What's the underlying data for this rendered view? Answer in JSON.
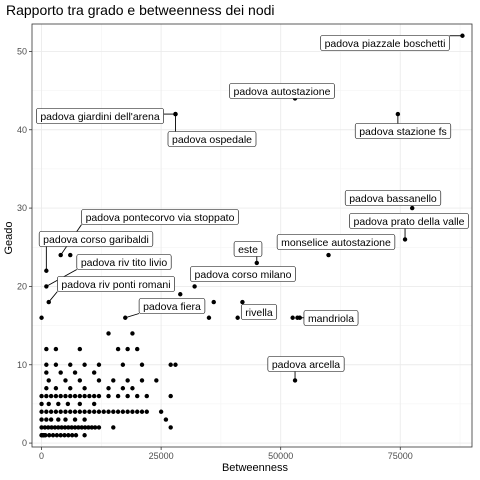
{
  "chart_data": {
    "type": "scatter",
    "title": "Rapporto tra grado e betweenness dei nodi",
    "xlabel": "Betweenness",
    "ylabel": "Geado",
    "xlim": [
      -2000,
      90000
    ],
    "ylim": [
      -0.5,
      53.5
    ],
    "xticks": [
      0,
      25000,
      50000,
      75000
    ],
    "xtick_labels": [
      "0",
      "25000",
      "50000",
      "75000"
    ],
    "yticks": [
      0,
      10,
      20,
      30,
      40,
      50
    ],
    "ytick_labels": [
      "0",
      "10",
      "20",
      "30",
      "40",
      "50"
    ],
    "grid": true,
    "labeled_points": [
      {
        "label": "padova piazzale boschetti",
        "x": 88000,
        "y": 52
      },
      {
        "label": "padova autostazione",
        "x": 53000,
        "y": 44
      },
      {
        "label": "padova stazione fs",
        "x": 74500,
        "y": 42
      },
      {
        "label": "padova giardini dell'arena",
        "x": 28000,
        "y": 42
      },
      {
        "label": "padova ospedale",
        "x": 28000,
        "y": 42
      },
      {
        "label": "padova bassanello",
        "x": 77500,
        "y": 30
      },
      {
        "label": "padova prato della valle",
        "x": 76000,
        "y": 26
      },
      {
        "label": "padova pontecorvo via stoppato",
        "x": 4000,
        "y": 24
      },
      {
        "label": "padova corso garibaldi",
        "x": 1000,
        "y": 22
      },
      {
        "label": "monselice autostazione",
        "x": 60000,
        "y": 24
      },
      {
        "label": "este",
        "x": 45000,
        "y": 23
      },
      {
        "label": "padova riv tito livio",
        "x": 1000,
        "y": 20
      },
      {
        "label": "padova corso milano",
        "x": 32000,
        "y": 20
      },
      {
        "label": "padova riv ponti romani",
        "x": 1500,
        "y": 18
      },
      {
        "label": "padova fiera",
        "x": 17500,
        "y": 16
      },
      {
        "label": "rivella",
        "x": 42000,
        "y": 18
      },
      {
        "label": "mandriola",
        "x": 53500,
        "y": 16
      },
      {
        "label": "padova arcella",
        "x": 53000,
        "y": 8
      }
    ],
    "other_points": [
      [
        0,
        1
      ],
      [
        500,
        1
      ],
      [
        300,
        1
      ],
      [
        0,
        16
      ],
      [
        6000,
        24
      ],
      [
        29000,
        19
      ],
      [
        35000,
        16
      ],
      [
        36000,
        18
      ],
      [
        41000,
        16
      ],
      [
        52500,
        16
      ],
      [
        54000,
        16
      ],
      [
        1000,
        12
      ],
      [
        3000,
        12
      ],
      [
        8000,
        12
      ],
      [
        14000,
        14
      ],
      [
        16000,
        12
      ],
      [
        18000,
        12
      ],
      [
        19000,
        14
      ],
      [
        20000,
        12
      ],
      [
        1000,
        10
      ],
      [
        3000,
        10
      ],
      [
        6000,
        10
      ],
      [
        9000,
        10
      ],
      [
        12000,
        10
      ],
      [
        17000,
        10
      ],
      [
        21000,
        10
      ],
      [
        27000,
        10
      ],
      [
        28000,
        10
      ],
      [
        1000,
        9
      ],
      [
        4000,
        9
      ],
      [
        7000,
        9
      ],
      [
        11000,
        9
      ],
      [
        1500,
        8
      ],
      [
        5000,
        8
      ],
      [
        8000,
        8
      ],
      [
        12000,
        8
      ],
      [
        15000,
        8
      ],
      [
        18000,
        8
      ],
      [
        21000,
        8
      ],
      [
        24000,
        8
      ],
      [
        1000,
        7
      ],
      [
        3000,
        7
      ],
      [
        6000,
        7
      ],
      [
        9000,
        7
      ],
      [
        14000,
        7
      ],
      [
        17000,
        7
      ],
      [
        19000,
        7
      ],
      [
        0,
        6
      ],
      [
        1000,
        6
      ],
      [
        2000,
        6
      ],
      [
        3000,
        6
      ],
      [
        4000,
        6
      ],
      [
        5000,
        6
      ],
      [
        6000,
        6
      ],
      [
        7000,
        6
      ],
      [
        8000,
        6
      ],
      [
        9000,
        6
      ],
      [
        10000,
        6
      ],
      [
        11000,
        6
      ],
      [
        12000,
        6
      ],
      [
        14000,
        6
      ],
      [
        16000,
        6
      ],
      [
        18000,
        6
      ],
      [
        20000,
        6
      ],
      [
        22000,
        6
      ],
      [
        27000,
        6
      ],
      [
        0,
        5
      ],
      [
        1500,
        5
      ],
      [
        3500,
        5
      ],
      [
        5500,
        5
      ],
      [
        8000,
        5
      ],
      [
        11000,
        5
      ],
      [
        0,
        4
      ],
      [
        1000,
        4
      ],
      [
        2000,
        4
      ],
      [
        3000,
        4
      ],
      [
        4000,
        4
      ],
      [
        5000,
        4
      ],
      [
        6000,
        4
      ],
      [
        7000,
        4
      ],
      [
        8000,
        4
      ],
      [
        9000,
        4
      ],
      [
        10000,
        4
      ],
      [
        11000,
        4
      ],
      [
        12000,
        4
      ],
      [
        13000,
        4
      ],
      [
        14000,
        4
      ],
      [
        15000,
        4
      ],
      [
        16000,
        4
      ],
      [
        17000,
        4
      ],
      [
        18000,
        4
      ],
      [
        19000,
        4
      ],
      [
        20000,
        4
      ],
      [
        21000,
        4
      ],
      [
        22000,
        4
      ],
      [
        25000,
        4
      ],
      [
        0,
        3
      ],
      [
        1000,
        3
      ],
      [
        2000,
        3
      ],
      [
        3500,
        3
      ],
      [
        5000,
        3
      ],
      [
        7000,
        3
      ],
      [
        9000,
        3
      ],
      [
        26000,
        3
      ],
      [
        0,
        2
      ],
      [
        700,
        2
      ],
      [
        1400,
        2
      ],
      [
        2100,
        2
      ],
      [
        2800,
        2
      ],
      [
        3500,
        2
      ],
      [
        4200,
        2
      ],
      [
        4900,
        2
      ],
      [
        5600,
        2
      ],
      [
        6300,
        2
      ],
      [
        7000,
        2
      ],
      [
        7700,
        2
      ],
      [
        8400,
        2
      ],
      [
        9100,
        2
      ],
      [
        9800,
        2
      ],
      [
        10500,
        2
      ],
      [
        11200,
        2
      ],
      [
        12000,
        2
      ],
      [
        15000,
        2
      ],
      [
        27000,
        2
      ],
      [
        0,
        1
      ],
      [
        800,
        1
      ],
      [
        1600,
        1
      ],
      [
        2400,
        1
      ],
      [
        3200,
        1
      ],
      [
        4000,
        1
      ],
      [
        4800,
        1
      ],
      [
        5600,
        1
      ],
      [
        6400,
        1
      ],
      [
        7200,
        1
      ],
      [
        9000,
        1
      ]
    ]
  }
}
